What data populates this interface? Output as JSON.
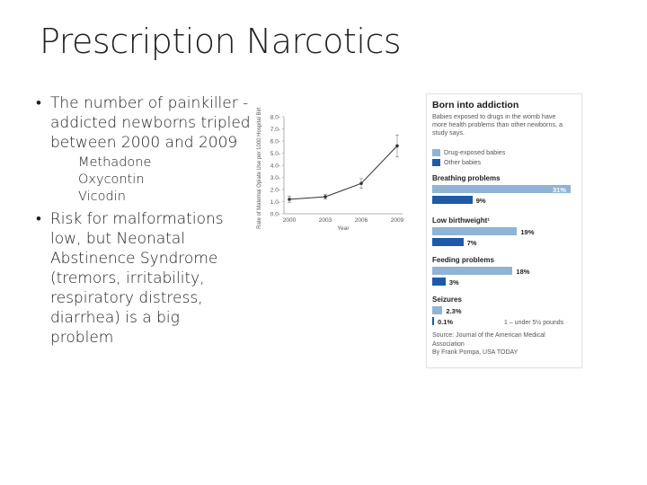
{
  "slide": {
    "title": "Prescription Narcotics"
  },
  "bullets": [
    {
      "text": "The number of painkiller -addicted newborns tripled between 2000 and 2009",
      "sub_items": [
        "Methadone",
        "Oxycontin",
        "Vicodin"
      ]
    },
    {
      "text": "Risk for malformations low, but Neonatal Abstinence Syndrome (tremors, irritability, respiratory distress, diarrhea) is a big problem"
    }
  ],
  "bullet_glyph": "•",
  "chart_data": {
    "type": "line",
    "title": "",
    "xlabel": "Year",
    "ylabel": "Rate of Maternal Opiate Use per 1000 Hospital Births",
    "x": [
      "2000",
      "2003",
      "2006",
      "2009"
    ],
    "values": [
      1.19,
      1.4,
      2.5,
      5.6
    ],
    "ylim": [
      0,
      8
    ],
    "yticks": [
      "0.0",
      "1.0",
      "2.0",
      "3.0",
      "4.0",
      "5.0",
      "6.0",
      "7.0",
      "8.0"
    ],
    "error_bars": true,
    "series_color": "#333333"
  },
  "infographic": {
    "title": "Born into addiction",
    "subtitle": "Babies exposed to drugs in the womb have more health problems than other newborns, a study says.",
    "legend": [
      {
        "label": "Drug-exposed babies",
        "color": "#8fb4d6"
      },
      {
        "label": "Other babies",
        "color": "#1f5aa8"
      }
    ],
    "chart_data": {
      "type": "bar",
      "categories": [
        "Breathing problems",
        "Low birthweight¹",
        "Feeding problems",
        "Seizures"
      ],
      "series": [
        {
          "name": "Drug-exposed babies",
          "values": [
            31,
            19,
            18,
            2.3
          ],
          "labels": [
            "31%",
            "19%",
            "18%",
            "2.3%"
          ]
        },
        {
          "name": "Other babies",
          "values": [
            9,
            7,
            3,
            0.1
          ],
          "labels": [
            "9%",
            "7%",
            "3%",
            "0.1%"
          ]
        }
      ],
      "xlim": [
        0,
        31
      ]
    },
    "footnote": "1 – under 5½ pounds",
    "source": "Source: Journal of the American Medical Association",
    "byline": "By Frank Pompa, USA TODAY"
  }
}
